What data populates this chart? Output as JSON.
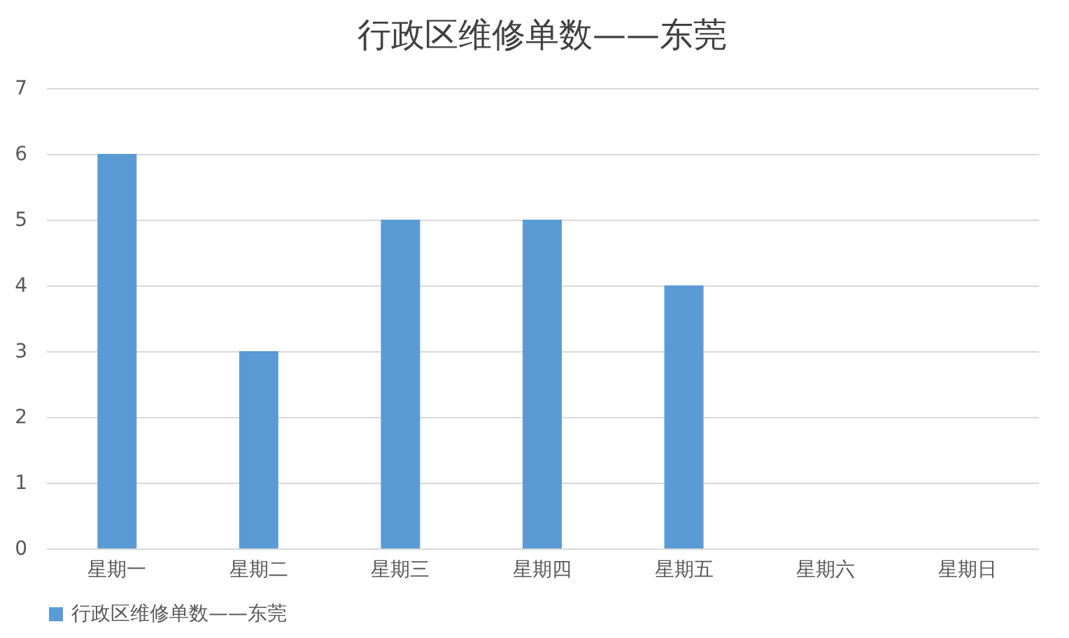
{
  "chart_data": {
    "type": "bar",
    "title": "行政区维修单数——东莞",
    "categories": [
      "星期一",
      "星期二",
      "星期三",
      "星期四",
      "星期五",
      "星期六",
      "星期日"
    ],
    "series": [
      {
        "name": "行政区维修单数——东莞",
        "color": "#5b9bd5",
        "values": [
          6,
          3,
          5,
          5,
          4,
          0,
          0
        ]
      }
    ],
    "ylim": [
      0,
      7
    ],
    "yticks": [
      0,
      1,
      2,
      3,
      4,
      5,
      6,
      7
    ],
    "grid": "y",
    "legend": "bottom"
  }
}
